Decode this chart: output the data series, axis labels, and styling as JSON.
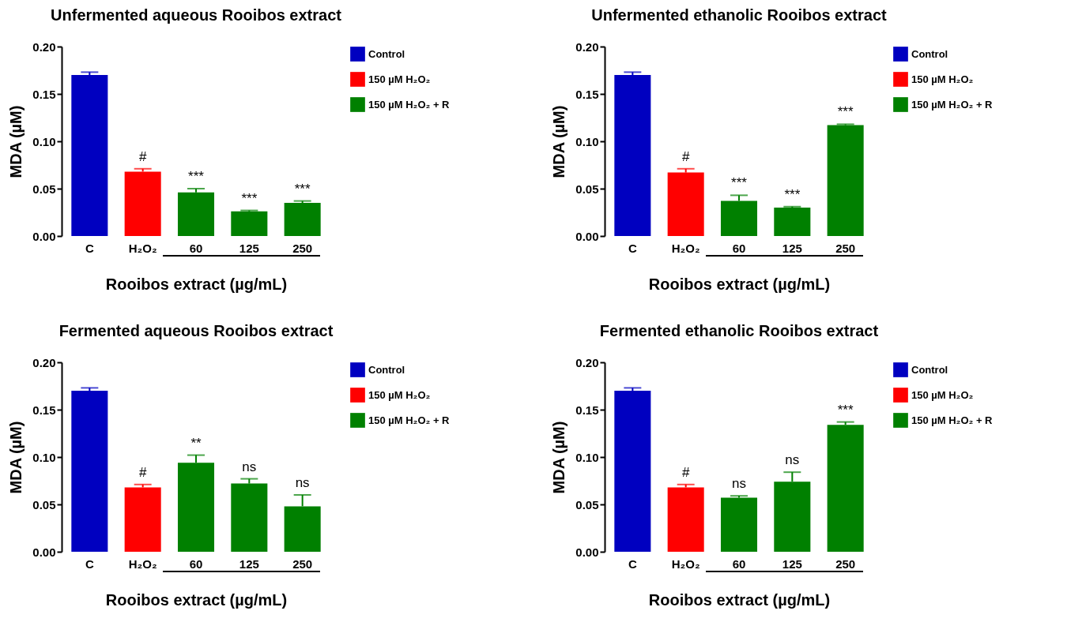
{
  "chart_data": [
    {
      "type": "bar",
      "title": "Unfermented aqueous Rooibos extract",
      "xlabel": "Rooibos extract (µg/mL)",
      "ylabel": "MDA (µM)",
      "categories": [
        "C",
        "H₂O₂",
        "60",
        "125",
        "250"
      ],
      "legend": "right",
      "ylim": [
        0,
        0.2
      ],
      "yticks": [
        {
          "value": 0,
          "label": "0.00"
        },
        {
          "value": 0.05,
          "label": "0.05"
        },
        {
          "value": 0.1,
          "label": "0.10"
        },
        {
          "value": 0.15,
          "label": "0.15"
        },
        {
          "value": 0.2,
          "label": "0.20"
        }
      ],
      "series": [
        {
          "name": "Control",
          "color": "#0000c0",
          "values": [
            0.17,
            null,
            null,
            null,
            null
          ],
          "errors": [
            [
              0.17,
              0.173
            ],
            null,
            null,
            null,
            null
          ]
        },
        {
          "name": "150 µM H₂O₂",
          "color": "#ff0000",
          "values": [
            null,
            0.068,
            null,
            null,
            null
          ],
          "errors": [
            null,
            [
              0.068,
              0.071
            ],
            null,
            null,
            null
          ]
        },
        {
          "name": "150 µM H₂O₂ + R",
          "color": "#008000",
          "values": [
            null,
            null,
            0.046,
            0.026,
            0.035
          ],
          "errors": [
            null,
            null,
            [
              0.046,
              0.05
            ],
            [
              0.026,
              0.027
            ],
            [
              0.035,
              0.037
            ]
          ]
        }
      ],
      "annotations": [
        {
          "text": "#",
          "x": "H₂O₂",
          "y": 0.071
        },
        {
          "text": "***",
          "x": "60",
          "y": 0.05
        },
        {
          "text": "***",
          "x": "125",
          "y": 0.027
        },
        {
          "text": "***",
          "x": "250",
          "y": 0.037
        }
      ]
    },
    {
      "type": "bar",
      "title": "Unfermented ethanolic Rooibos extract",
      "xlabel": "Rooibos extract (µg/mL)",
      "ylabel": "MDA (µM)",
      "categories": [
        "C",
        "H₂O₂",
        "60",
        "125",
        "250"
      ],
      "legend": "right",
      "ylim": [
        0,
        0.2
      ],
      "yticks": [
        {
          "value": 0,
          "label": "0.00"
        },
        {
          "value": 0.05,
          "label": "0.05"
        },
        {
          "value": 0.1,
          "label": "0.10"
        },
        {
          "value": 0.15,
          "label": "0.15"
        },
        {
          "value": 0.2,
          "label": "0.20"
        }
      ],
      "series": [
        {
          "name": "Control",
          "color": "#0000c0",
          "values": [
            0.17,
            null,
            null,
            null,
            null
          ],
          "errors": [
            [
              0.17,
              0.173
            ],
            null,
            null,
            null,
            null
          ]
        },
        {
          "name": "150 µM H₂O₂",
          "color": "#ff0000",
          "values": [
            null,
            0.067,
            null,
            null,
            null
          ],
          "errors": [
            null,
            [
              0.067,
              0.071
            ],
            null,
            null,
            null
          ]
        },
        {
          "name": "150 µM H₂O₂ + R",
          "color": "#008000",
          "values": [
            null,
            null,
            0.037,
            0.03,
            0.117
          ],
          "errors": [
            null,
            null,
            [
              0.037,
              0.043
            ],
            [
              0.03,
              0.031
            ],
            [
              0.117,
              0.118
            ]
          ]
        }
      ],
      "annotations": [
        {
          "text": "#",
          "x": "H₂O₂",
          "y": 0.071
        },
        {
          "text": "***",
          "x": "60",
          "y": 0.043
        },
        {
          "text": "***",
          "x": "125",
          "y": 0.031
        },
        {
          "text": "***",
          "x": "250",
          "y": 0.118
        }
      ]
    },
    {
      "type": "bar",
      "title": "Fermented aqueous Rooibos extract",
      "xlabel": "Rooibos extract (µg/mL)",
      "ylabel": "MDA (µM)",
      "categories": [
        "C",
        "H₂O₂",
        "60",
        "125",
        "250"
      ],
      "legend": "right",
      "ylim": [
        0,
        0.2
      ],
      "yticks": [
        {
          "value": 0,
          "label": "0.00"
        },
        {
          "value": 0.05,
          "label": "0.05"
        },
        {
          "value": 0.1,
          "label": "0.10"
        },
        {
          "value": 0.15,
          "label": "0.15"
        },
        {
          "value": 0.2,
          "label": "0.20"
        }
      ],
      "series": [
        {
          "name": "Control",
          "color": "#0000c0",
          "values": [
            0.17,
            null,
            null,
            null,
            null
          ],
          "errors": [
            [
              0.17,
              0.173
            ],
            null,
            null,
            null,
            null
          ]
        },
        {
          "name": "150 µM H₂O₂",
          "color": "#ff0000",
          "values": [
            null,
            0.068,
            null,
            null,
            null
          ],
          "errors": [
            null,
            [
              0.068,
              0.071
            ],
            null,
            null,
            null
          ]
        },
        {
          "name": "150 µM H₂O₂ + R",
          "color": "#008000",
          "values": [
            null,
            null,
            0.094,
            0.072,
            0.048
          ],
          "errors": [
            null,
            null,
            [
              0.094,
              0.102
            ],
            [
              0.072,
              0.077
            ],
            [
              0.048,
              0.06
            ]
          ]
        }
      ],
      "annotations": [
        {
          "text": "#",
          "x": "H₂O₂",
          "y": 0.071
        },
        {
          "text": "**",
          "x": "60",
          "y": 0.102
        },
        {
          "text": "ns",
          "x": "125",
          "y": 0.077
        },
        {
          "text": "ns",
          "x": "250",
          "y": 0.06
        }
      ]
    },
    {
      "type": "bar",
      "title": "Fermented ethanolic Rooibos extract",
      "xlabel": "Rooibos extract (µg/mL)",
      "ylabel": "MDA (µM)",
      "categories": [
        "C",
        "H₂O₂",
        "60",
        "125",
        "250"
      ],
      "legend": "right",
      "ylim": [
        0,
        0.2
      ],
      "yticks": [
        {
          "value": 0,
          "label": "0.00"
        },
        {
          "value": 0.05,
          "label": "0.05"
        },
        {
          "value": 0.1,
          "label": "0.10"
        },
        {
          "value": 0.15,
          "label": "0.15"
        },
        {
          "value": 0.2,
          "label": "0.20"
        }
      ],
      "series": [
        {
          "name": "Control",
          "color": "#0000c0",
          "values": [
            0.17,
            null,
            null,
            null,
            null
          ],
          "errors": [
            [
              0.17,
              0.173
            ],
            null,
            null,
            null,
            null
          ]
        },
        {
          "name": "150 µM H₂O₂",
          "color": "#ff0000",
          "values": [
            null,
            0.068,
            null,
            null,
            null
          ],
          "errors": [
            null,
            [
              0.068,
              0.071
            ],
            null,
            null,
            null
          ]
        },
        {
          "name": "150 µM H₂O₂ + R",
          "color": "#008000",
          "values": [
            null,
            null,
            0.057,
            0.074,
            0.134
          ],
          "errors": [
            null,
            null,
            [
              0.057,
              0.059
            ],
            [
              0.074,
              0.084
            ],
            [
              0.134,
              0.137
            ]
          ]
        }
      ],
      "annotations": [
        {
          "text": "#",
          "x": "H₂O₂",
          "y": 0.071
        },
        {
          "text": "ns",
          "x": "60",
          "y": 0.059
        },
        {
          "text": "ns",
          "x": "125",
          "y": 0.084
        },
        {
          "text": "***",
          "x": "250",
          "y": 0.137
        }
      ]
    }
  ]
}
